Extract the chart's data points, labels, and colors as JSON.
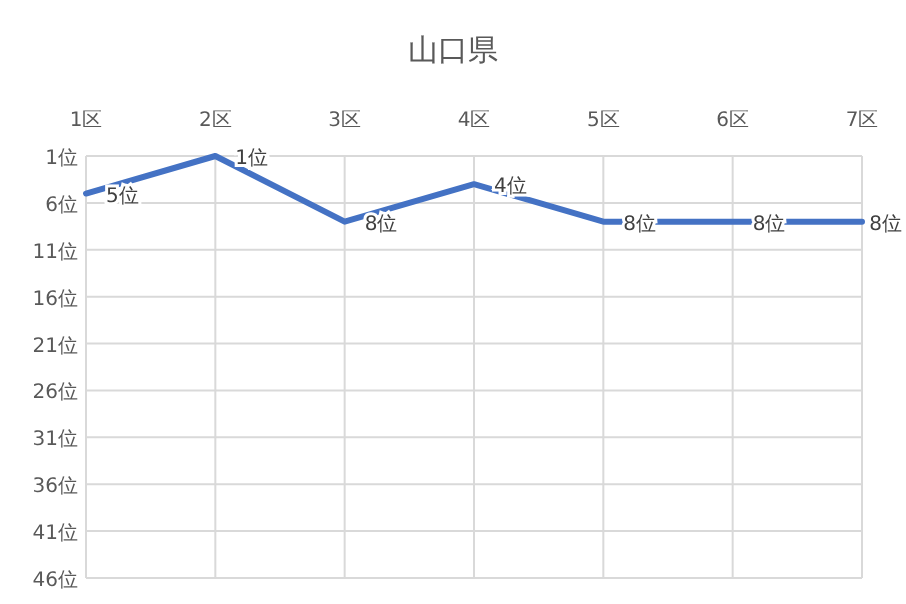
{
  "chart_data": {
    "type": "line",
    "title": "山口県",
    "categories": [
      "1区",
      "2区",
      "3区",
      "4区",
      "5区",
      "6区",
      "7区"
    ],
    "series": [
      {
        "color": "#4472c4",
        "values": [
          5,
          1,
          8,
          4,
          8,
          8,
          8
        ],
        "value_labels": [
          "5位",
          "1位",
          "8位",
          "4位",
          "8位",
          "8位",
          "8位"
        ]
      }
    ],
    "ylim": [
      46,
      1
    ],
    "yticks": [
      {
        "value": 1,
        "label": "1位"
      },
      {
        "value": 6,
        "label": "6位"
      },
      {
        "value": 11,
        "label": "11位"
      },
      {
        "value": 16,
        "label": "16位"
      },
      {
        "value": 21,
        "label": "21位"
      },
      {
        "value": 26,
        "label": "26位"
      },
      {
        "value": 31,
        "label": "31位"
      },
      {
        "value": 36,
        "label": "36位"
      },
      {
        "value": 41,
        "label": "41位"
      },
      {
        "value": 46,
        "label": "46位"
      }
    ],
    "grid": true,
    "marker": "none",
    "line_style": "solid"
  }
}
